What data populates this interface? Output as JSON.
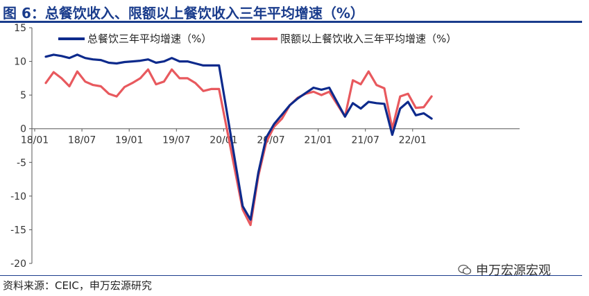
{
  "title": "图 6：总餐饮收入、限额以上餐饮收入三年平均增速（%）",
  "source": "资料来源：CEIC，申万宏源研究",
  "watermark": "申万宏源宏观",
  "colors": {
    "series1": "#0d2a8c",
    "series2": "#e8595e",
    "title": "#1a3c8c"
  },
  "chart_data": {
    "type": "line",
    "title": "图 6：总餐饮收入、限额以上餐饮收入三年平均增速（%）",
    "xlabel": "",
    "ylabel": "",
    "ylim": [
      -20,
      15
    ],
    "yticks": [
      "15",
      "10",
      "5",
      "0",
      "-5",
      "-10",
      "-15",
      "-20"
    ],
    "xticks": [
      "18/01",
      "18/07",
      "19/01",
      "19/07",
      "20/01",
      "20/07",
      "21/01",
      "21/07",
      "22/01"
    ],
    "legend_position": "top",
    "x": [
      "18/01",
      "18/02",
      "18/03",
      "18/04",
      "18/05",
      "18/06",
      "18/07",
      "18/08",
      "18/09",
      "18/10",
      "18/11",
      "18/12",
      "19/01",
      "19/02",
      "19/03",
      "19/04",
      "19/05",
      "19/06",
      "19/07",
      "19/08",
      "19/09",
      "19/10",
      "19/11",
      "19/12",
      "20/01",
      "20/02",
      "20/03",
      "20/04",
      "20/05",
      "20/06",
      "20/07",
      "20/08",
      "20/09",
      "20/10",
      "20/11",
      "20/12",
      "21/01",
      "21/02",
      "21/03",
      "21/04",
      "21/05",
      "21/06",
      "21/07",
      "21/08",
      "21/09",
      "21/10",
      "21/11",
      "21/12",
      "22/01",
      "22/02"
    ],
    "series": [
      {
        "name": "总餐饮三年平均增速（%）",
        "color": "#0d2a8c",
        "values": [
          10.7,
          11.0,
          10.8,
          10.5,
          11.0,
          10.5,
          10.3,
          10.2,
          9.8,
          9.7,
          9.9,
          10.0,
          10.1,
          10.3,
          9.8,
          10.0,
          10.5,
          10.0,
          10.0,
          9.7,
          9.4,
          9.4,
          9.4,
          null,
          null,
          -11.5,
          -13.5,
          -6.5,
          -1.3,
          0.7,
          2.1,
          3.5,
          4.5,
          5.3,
          6.1,
          5.8,
          6.1,
          null,
          1.8,
          3.8,
          3.0,
          4.0,
          3.8,
          3.7,
          -0.9,
          3.0,
          4.0,
          2.0,
          2.3,
          1.5
        ]
      },
      {
        "name": "限额以上餐饮收入三年平均增速（%）",
        "color": "#e8595e",
        "values": [
          6.8,
          8.4,
          7.5,
          6.3,
          8.5,
          7.0,
          6.5,
          6.3,
          5.2,
          4.8,
          6.2,
          6.8,
          7.5,
          8.8,
          6.6,
          7.0,
          8.8,
          7.5,
          7.5,
          6.8,
          5.6,
          5.9,
          5.9,
          null,
          null,
          -12.0,
          -14.3,
          -7.0,
          -2.0,
          0.3,
          1.5,
          3.5,
          4.6,
          5.2,
          5.5,
          5.0,
          5.5,
          null,
          1.8,
          7.2,
          6.6,
          8.5,
          6.5,
          6.0,
          0.0,
          4.8,
          5.2,
          3.1,
          3.2,
          4.8
        ]
      }
    ]
  }
}
